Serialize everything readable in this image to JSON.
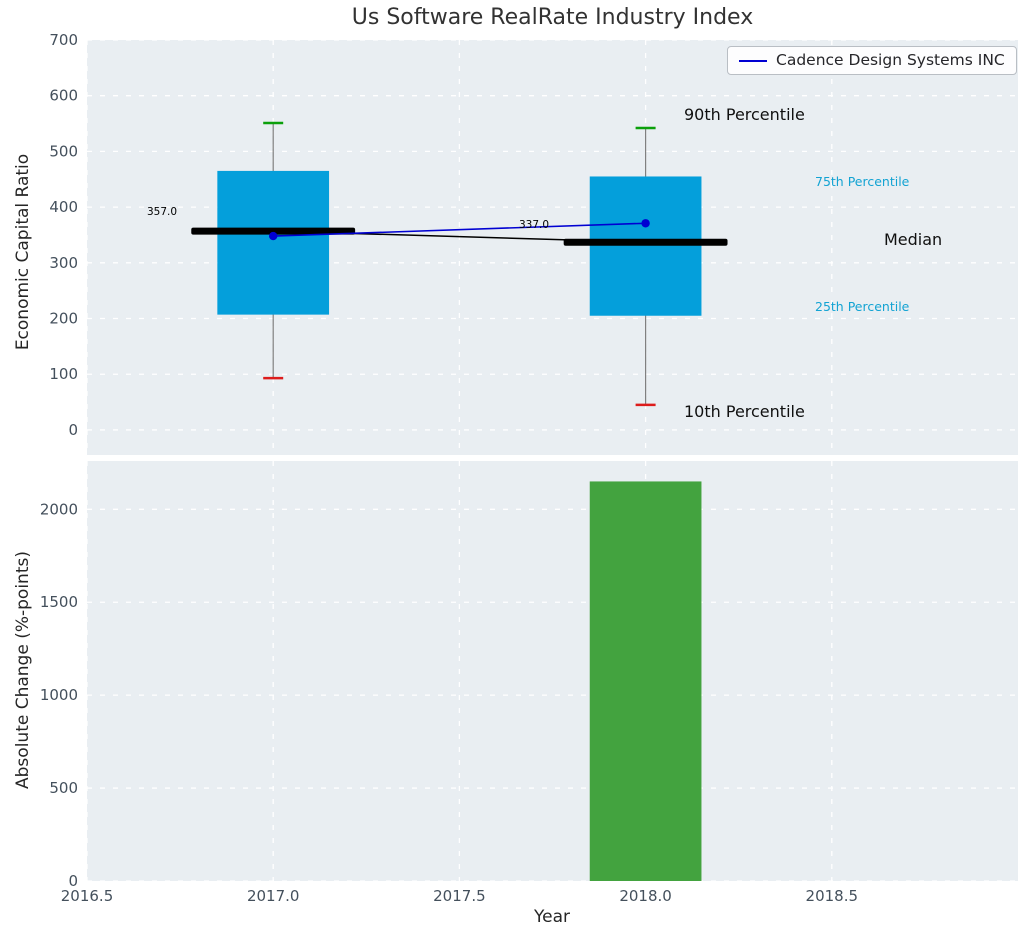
{
  "figure": {
    "background": "#ffffff",
    "panel_background": "#e9eef2",
    "grid_color": "#ffffff",
    "tick_color": "#44505c"
  },
  "legend": {
    "label": "Cadence Design Systems INC",
    "line_color": "#0000d2"
  },
  "chart_data": [
    {
      "type": "boxplot",
      "title": "Us Software RealRate Industry Index",
      "ylabel": "Economic Capital Ratio",
      "xlim": [
        2016.5,
        2019.0
      ],
      "ylim": [
        -45,
        700
      ],
      "yticks": [
        0,
        100,
        200,
        300,
        400,
        500,
        600,
        700
      ],
      "grid": true,
      "legend_position": "upper right",
      "box_color": "#049fdb",
      "whisker_color": "#808080",
      "cap_top_color": "#0ba00b",
      "cap_bottom_color": "#dd1c1c",
      "median_color": "#000000",
      "box_width": 0.3,
      "median_width": 0.44,
      "boxes": [
        {
          "x": 2017,
          "p10": 93,
          "p25": 207,
          "median": 357,
          "p75": 465,
          "p90": 551,
          "median_label": "357.0"
        },
        {
          "x": 2018,
          "p10": 45,
          "p25": 205,
          "median": 337,
          "p75": 455,
          "p90": 542,
          "median_label": "337.0"
        }
      ],
      "series": [
        {
          "name": "Cadence Design Systems INC",
          "color": "#0000d2",
          "x": [
            2017,
            2018
          ],
          "y": [
            348,
            371
          ]
        }
      ],
      "annotations": [
        {
          "text": "90th Percentile",
          "color": "#101010"
        },
        {
          "text": "10th Percentile",
          "color": "#101010"
        },
        {
          "text": "75th Percentile",
          "color": "#13a3d3"
        },
        {
          "text": "25th Percentile",
          "color": "#13a3d3"
        },
        {
          "text": "Median",
          "color": "#101010"
        }
      ]
    },
    {
      "type": "bar",
      "xlabel": "Year",
      "ylabel": "Absolute Change (%-points)",
      "xlim": [
        2016.5,
        2019.0
      ],
      "ylim": [
        0,
        2260
      ],
      "yticks": [
        0,
        500,
        1000,
        1500,
        2000
      ],
      "xticks": [
        2016.5,
        2017.0,
        2017.5,
        2018.0,
        2018.5
      ],
      "xtick_labels": [
        "2016.5",
        "2017.0",
        "2017.5",
        "2018.0",
        "2018.5"
      ],
      "grid": true,
      "bar_color": "#43a33f",
      "bar_width": 0.3,
      "bars": [
        {
          "x": 2018,
          "value": 2150
        }
      ]
    }
  ]
}
